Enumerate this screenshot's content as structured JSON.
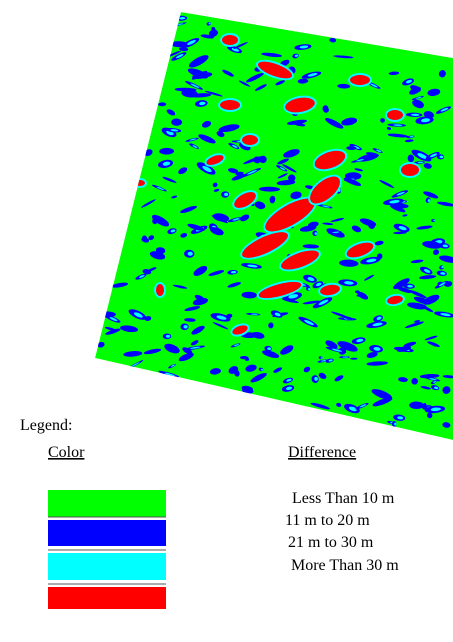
{
  "legend": {
    "title": "Legend:",
    "color_header": "Color",
    "difference_header": "Difference",
    "items": [
      {
        "label": "Less Than 10 m",
        "color": "#00ff00"
      },
      {
        "label": "11 m to 20 m",
        "color": "#0000ff"
      },
      {
        "label": "21 m to 30 m",
        "color": "#00ffff"
      },
      {
        "label": "More Than 30 m",
        "color": "#ff0000"
      }
    ]
  }
}
